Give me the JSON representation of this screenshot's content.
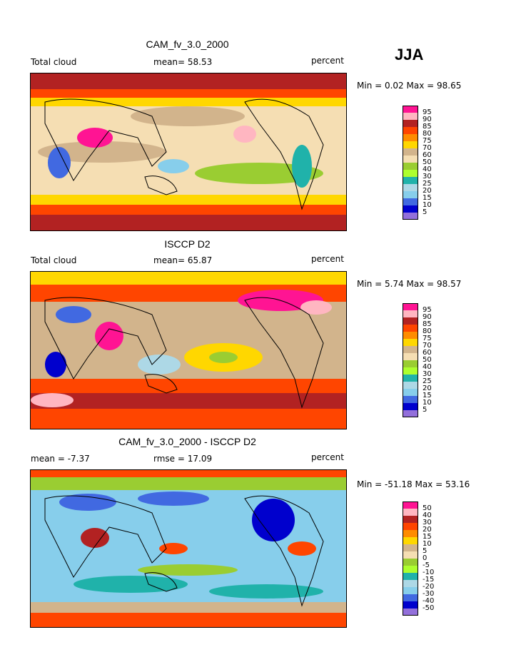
{
  "season": "JJA",
  "panels": [
    {
      "title": "CAM_fv_3.0_2000",
      "left_label": "Total cloud",
      "mid_label": "mean=  58.53",
      "right_label": "percent",
      "minmax": "Min =   0.02 Max =  98.65",
      "scheme": "abs"
    },
    {
      "title": "ISCCP D2",
      "left_label": "Total cloud",
      "mid_label": "mean=  65.87",
      "right_label": "percent",
      "minmax": "Min =   5.74 Max =  98.57",
      "scheme": "abs"
    },
    {
      "title": "CAM_fv_3.0_2000 - ISCCP D2",
      "left_label": "mean =  -7.37",
      "mid_label": "rmse =  17.09",
      "right_label": "percent",
      "minmax": "Min = -51.18 Max =  53.16",
      "scheme": "diff"
    }
  ],
  "legends": {
    "abs": {
      "labels": [
        "95",
        "90",
        "85",
        "80",
        "75",
        "70",
        "60",
        "50",
        "40",
        "30",
        "25",
        "20",
        "15",
        "10",
        "5"
      ],
      "colors": [
        "#ff1493",
        "#ffb6c1",
        "#b22222",
        "#ff4500",
        "#ff8c00",
        "#ffd700",
        "#d2b48c",
        "#f5deb3",
        "#9acd32",
        "#adff2f",
        "#20b2aa",
        "#add8e6",
        "#87ceeb",
        "#4169e1",
        "#0000cd",
        "#9370db"
      ]
    },
    "diff": {
      "labels": [
        "50",
        "40",
        "30",
        "20",
        "15",
        "10",
        "5",
        "0",
        "-5",
        "-10",
        "-15",
        "-20",
        "-30",
        "-40",
        "-50"
      ],
      "colors": [
        "#ff1493",
        "#ffb6c1",
        "#b22222",
        "#ff4500",
        "#ff8c00",
        "#ffd700",
        "#d2b48c",
        "#f5deb3",
        "#9acd32",
        "#adff2f",
        "#20b2aa",
        "#add8e6",
        "#87ceeb",
        "#4169e1",
        "#0000cd",
        "#9370db"
      ]
    }
  }
}
